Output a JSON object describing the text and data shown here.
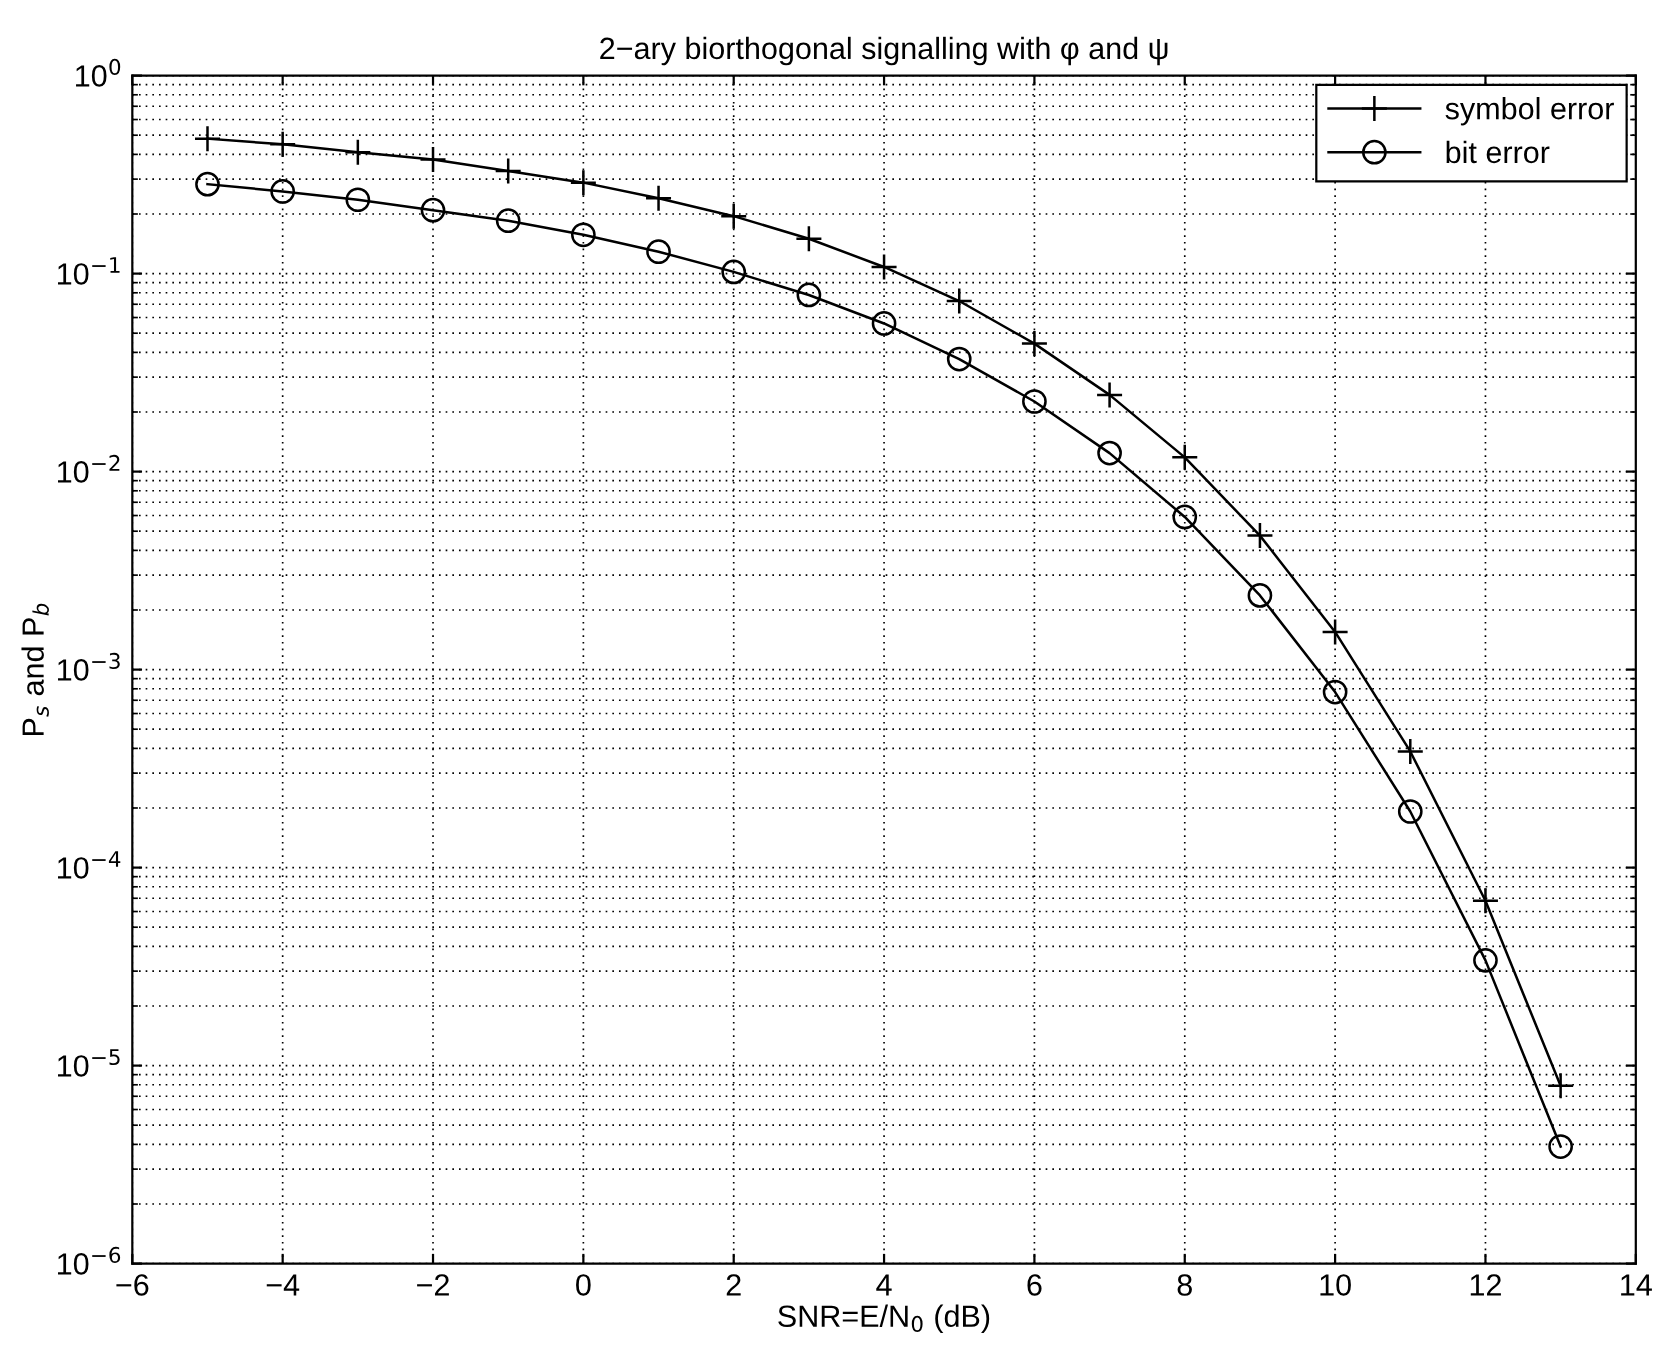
{
  "chart_data": {
    "type": "line",
    "title": "2−ary biorthogonal signalling with φ and ψ",
    "xlabel": "SNR=E/N$_{0}$ (dB)",
    "ylabel": "P$_{s}$ and P$_{b}$",
    "x": [
      -5,
      -4,
      -3,
      -2,
      -1,
      0,
      1,
      2,
      3,
      4,
      5,
      6,
      7,
      8,
      9,
      10,
      11,
      12,
      13
    ],
    "series": [
      {
        "name": "symbol error",
        "color": "#000000",
        "marker": "cross",
        "values": [
          0.48,
          0.45,
          0.41,
          0.377,
          0.33,
          0.288,
          0.24,
          0.195,
          0.15,
          0.108,
          0.0727,
          0.0443,
          0.0244,
          0.0118,
          0.00475,
          0.00155,
          0.000386,
          6.8e-05,
          7.9e-06
        ]
      },
      {
        "name": "bit error",
        "color": "#000000",
        "marker": "circle",
        "values": [
          0.283,
          0.26,
          0.236,
          0.209,
          0.185,
          0.157,
          0.129,
          0.102,
          0.078,
          0.056,
          0.037,
          0.0226,
          0.0124,
          0.0059,
          0.00237,
          0.00077,
          0.000192,
          3.4e-05,
          3.9e-06
        ]
      }
    ],
    "log": "y",
    "xlim": [
      -6,
      14
    ],
    "xticks": [
      -6,
      -4,
      -2,
      0,
      2,
      4,
      6,
      8,
      10,
      12,
      14
    ],
    "ylim": [
      1e-06,
      1
    ],
    "yticks": [
      {
        "value": 1e-06,
        "label": "10$^{−6}$"
      },
      {
        "value": 1e-05,
        "label": "10$^{−5}$"
      },
      {
        "value": 0.0001,
        "label": "10$^{−4}$"
      },
      {
        "value": 0.001,
        "label": "10$^{−3}$"
      },
      {
        "value": 0.01,
        "label": "10$^{−2}$"
      },
      {
        "value": 0.1,
        "label": "10$^{−1}$"
      },
      {
        "value": 1,
        "label": "10$^{0}$"
      }
    ],
    "grid": true,
    "legend": "top right",
    "line_style": "solid"
  }
}
